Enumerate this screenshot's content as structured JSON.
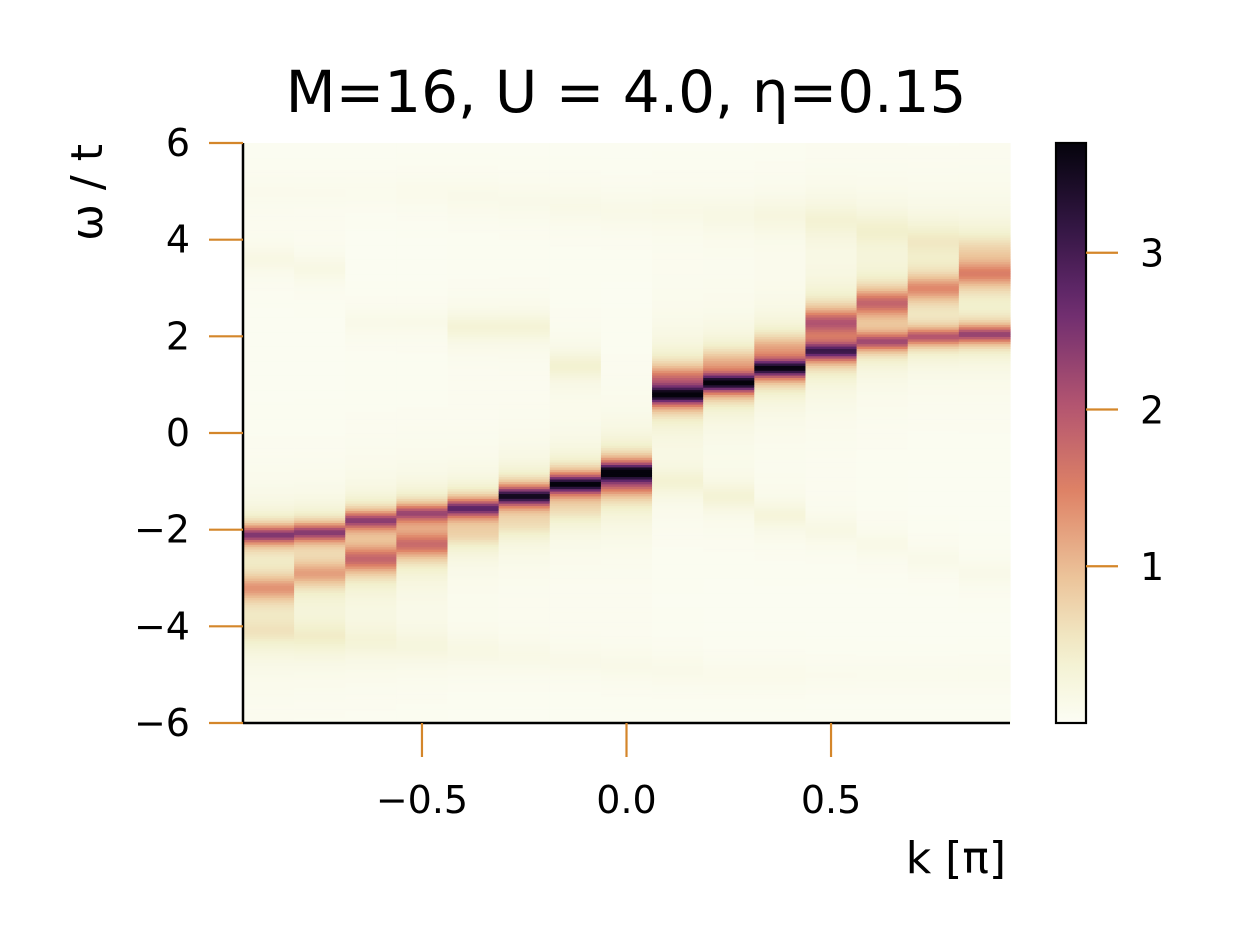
{
  "chart_data": {
    "type": "heatmap",
    "title": "M=16, U = 4.0, η=0.15",
    "xlabel": "k [π]",
    "ylabel": "ω / t",
    "xlim": [
      -0.9375,
      0.9375
    ],
    "ylim": [
      -6,
      6
    ],
    "x_ticks": [
      -0.5,
      0.0,
      0.5
    ],
    "x_tick_labels": [
      "−0.5",
      "0.0",
      "0.5"
    ],
    "y_ticks": [
      -6,
      -4,
      -2,
      0,
      2,
      4,
      6
    ],
    "y_tick_labels": [
      "−6",
      "−4",
      "−2",
      "0",
      "2",
      "4",
      "6"
    ],
    "colorbar": {
      "range": [
        0,
        3.7
      ],
      "ticks": [
        1,
        2,
        3
      ],
      "tick_labels": [
        "1",
        "2",
        "3"
      ],
      "colormap": "magma_r"
    },
    "k_values": [
      -0.875,
      -0.75,
      -0.625,
      -0.5,
      -0.375,
      -0.25,
      -0.125,
      0.0,
      0.125,
      0.25,
      0.375,
      0.5,
      0.625,
      0.75,
      0.875
    ],
    "bands": [
      {
        "name": "main",
        "centers": [
          -2.1,
          -2.05,
          -1.8,
          -1.65,
          -1.55,
          -1.3,
          -1.05,
          -0.8,
          0.8,
          1.05,
          1.35,
          1.7,
          1.9,
          2.0,
          2.05
        ],
        "peaks": [
          2.4,
          2.3,
          2.2,
          2.0,
          2.7,
          3.5,
          3.7,
          3.6,
          3.5,
          3.7,
          3.5,
          2.8,
          2.0,
          1.9,
          2.2
        ]
      },
      {
        "name": "secondary",
        "centers": [
          -3.2,
          -2.9,
          -2.6,
          -2.3,
          -2.1,
          -1.9,
          -1.6,
          -1.05,
          1.15,
          1.5,
          1.8,
          2.3,
          2.7,
          3.0,
          3.3
        ],
        "peaks": [
          1.2,
          1.1,
          1.7,
          1.6,
          0.5,
          0.35,
          0.3,
          1.0,
          1.1,
          0.6,
          0.7,
          1.8,
          1.7,
          1.3,
          1.3
        ]
      },
      {
        "name": "upper",
        "centers": [
          3.6,
          3.4,
          2.3,
          2.3,
          2.2,
          2.2,
          1.4,
          0.0,
          -1.0,
          -1.3,
          -1.7,
          -2.0,
          -2.3,
          -2.6,
          -2.9
        ],
        "peaks": [
          0.15,
          0.15,
          0.1,
          0.1,
          0.3,
          0.3,
          0.35,
          0.0,
          0.3,
          0.3,
          0.25,
          0.15,
          0.12,
          0.1,
          0.1
        ]
      },
      {
        "name": "lower",
        "centers": [
          -4.1,
          -4.2,
          -4.3,
          -4.4,
          -4.5,
          -4.6,
          -4.7,
          -4.8,
          -4.9,
          -5.0,
          -5.0,
          -5.0,
          -5.0,
          -5.0,
          -5.0
        ],
        "peaks": [
          0.45,
          0.4,
          0.25,
          0.2,
          0.15,
          0.12,
          0.1,
          0.1,
          0.1,
          0.08,
          0.08,
          0.06,
          0.06,
          0.06,
          0.06
        ]
      },
      {
        "name": "top",
        "centers": [
          5.0,
          5.0,
          5.0,
          5.0,
          4.9,
          4.8,
          4.7,
          4.6,
          4.6,
          4.5,
          4.5,
          4.4,
          4.2,
          4.0,
          3.8
        ],
        "peaks": [
          0.06,
          0.06,
          0.06,
          0.08,
          0.1,
          0.1,
          0.12,
          0.12,
          0.12,
          0.15,
          0.2,
          0.3,
          0.35,
          0.4,
          0.45
        ]
      }
    ]
  }
}
